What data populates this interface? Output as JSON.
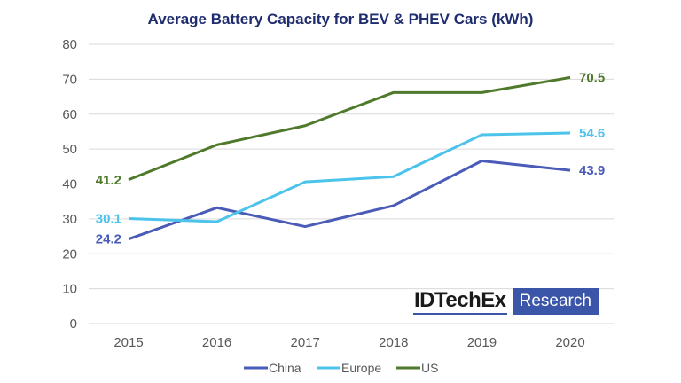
{
  "chart_data": {
    "type": "line",
    "title": "Average Battery Capacity for BEV & PHEV Cars (kWh)",
    "xlabel": "",
    "ylabel": "",
    "categories": [
      "2015",
      "2016",
      "2017",
      "2018",
      "2019",
      "2020"
    ],
    "ylim": [
      0,
      80
    ],
    "yticks": [
      0,
      10,
      20,
      30,
      40,
      50,
      60,
      70,
      80
    ],
    "grid": true,
    "legend_position": "bottom",
    "series": [
      {
        "name": "China",
        "color": "#4a5bb8",
        "values": [
          24.2,
          33.2,
          27.8,
          33.8,
          46.6,
          43.9
        ],
        "labels": [
          "24.2",
          null,
          null,
          null,
          null,
          "43.9"
        ]
      },
      {
        "name": "Europe",
        "color": "#4cc3ea",
        "values": [
          30.1,
          29.2,
          40.6,
          42.1,
          54.1,
          54.6
        ],
        "labels": [
          "30.1",
          null,
          null,
          null,
          null,
          "54.6"
        ]
      },
      {
        "name": "US",
        "color": "#4f7a2c",
        "values": [
          41.2,
          51.2,
          56.7,
          66.2,
          66.2,
          70.5
        ],
        "labels": [
          "41.2",
          null,
          null,
          null,
          null,
          "70.5"
        ]
      }
    ]
  },
  "colors": {
    "title": "#1f2d6e",
    "grid": "#d9d9d9",
    "logo_accent": "#3b55a8"
  },
  "logo": {
    "brand": "IDTechEx",
    "tag": "Research"
  }
}
